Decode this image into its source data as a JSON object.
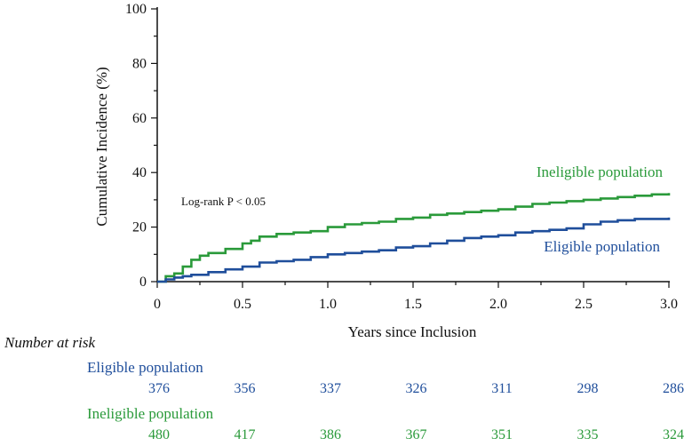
{
  "chart_data": {
    "type": "line",
    "ylabel": "Cumulative Incidence (%)",
    "xlabel": "Years since Inclusion",
    "xlim": [
      0,
      3.0
    ],
    "ylim": [
      0,
      100
    ],
    "x_ticks": [
      "0",
      "0.5",
      "1.0",
      "1.5",
      "2.0",
      "2.5",
      "3.0"
    ],
    "y_ticks": [
      "0",
      "20",
      "40",
      "60",
      "80",
      "100"
    ],
    "grid": false,
    "annotation": "Log-rank P < 0.05",
    "series": [
      {
        "name": "Ineligible population",
        "color": "#2a9a3a",
        "x": [
          0,
          0.05,
          0.1,
          0.15,
          0.2,
          0.25,
          0.3,
          0.4,
          0.5,
          0.55,
          0.6,
          0.7,
          0.8,
          0.9,
          1.0,
          1.1,
          1.2,
          1.3,
          1.4,
          1.5,
          1.6,
          1.7,
          1.8,
          1.9,
          2.0,
          2.1,
          2.2,
          2.3,
          2.4,
          2.5,
          2.6,
          2.7,
          2.8,
          2.9,
          3.0
        ],
        "y": [
          0,
          2,
          3,
          5.5,
          8,
          9.5,
          10.5,
          12,
          14,
          15,
          16.5,
          17.5,
          18,
          18.5,
          20,
          21,
          21.5,
          22,
          23,
          23.5,
          24.5,
          25,
          25.5,
          26,
          26.5,
          27.5,
          28.5,
          29,
          29.5,
          30,
          30.5,
          31,
          31.5,
          32,
          32.5
        ]
      },
      {
        "name": "Eligible population",
        "color": "#1f4e9b",
        "x": [
          0,
          0.05,
          0.1,
          0.15,
          0.2,
          0.3,
          0.4,
          0.5,
          0.6,
          0.7,
          0.8,
          0.9,
          1.0,
          1.1,
          1.2,
          1.3,
          1.4,
          1.5,
          1.6,
          1.7,
          1.8,
          1.9,
          2.0,
          2.1,
          2.2,
          2.3,
          2.4,
          2.5,
          2.6,
          2.7,
          2.8,
          2.9,
          3.0
        ],
        "y": [
          0,
          0.8,
          1.5,
          2,
          2.5,
          3.5,
          4.5,
          5.5,
          7,
          7.5,
          8,
          9,
          10,
          10.5,
          11,
          11.5,
          12.5,
          13,
          14,
          15,
          16,
          16.5,
          17,
          18,
          18.5,
          19,
          19.5,
          21,
          22,
          22.5,
          23,
          23,
          23.5
        ]
      }
    ]
  },
  "risk_table": {
    "title": "Number at risk",
    "groups": [
      {
        "name": "Eligible population",
        "color": "#1f4e9b",
        "values": [
          "376",
          "356",
          "337",
          "326",
          "311",
          "298",
          "286"
        ]
      },
      {
        "name": "Ineligible population",
        "color": "#2a9a3a",
        "values": [
          "480",
          "417",
          "386",
          "367",
          "351",
          "335",
          "324"
        ]
      }
    ]
  }
}
